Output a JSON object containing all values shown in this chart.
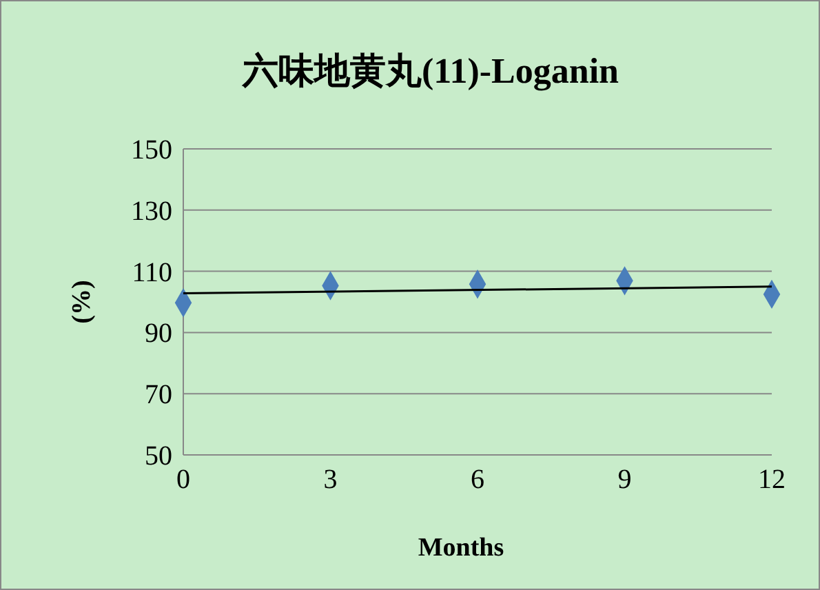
{
  "chart_data": {
    "type": "scatter",
    "title": "六味地黄丸(11)-Loganin",
    "xlabel": "Months",
    "ylabel": "(%)",
    "xlim": [
      0,
      12
    ],
    "xticks": [
      0,
      3,
      6,
      9,
      12
    ],
    "ylim": [
      50,
      150
    ],
    "yticks": [
      50,
      70,
      90,
      110,
      130,
      150
    ],
    "grid": "y",
    "marker": "diamond",
    "series": [
      {
        "color": "#4a7ebb",
        "x": [
          0,
          3,
          6,
          9,
          12
        ],
        "values": [
          99.7,
          105.3,
          105.8,
          106.9,
          102.5
        ]
      },
      {
        "type": "line",
        "color": "#000000",
        "x": [
          0,
          12
        ],
        "values": [
          102.8,
          105.0
        ],
        "marker": "none"
      }
    ]
  }
}
